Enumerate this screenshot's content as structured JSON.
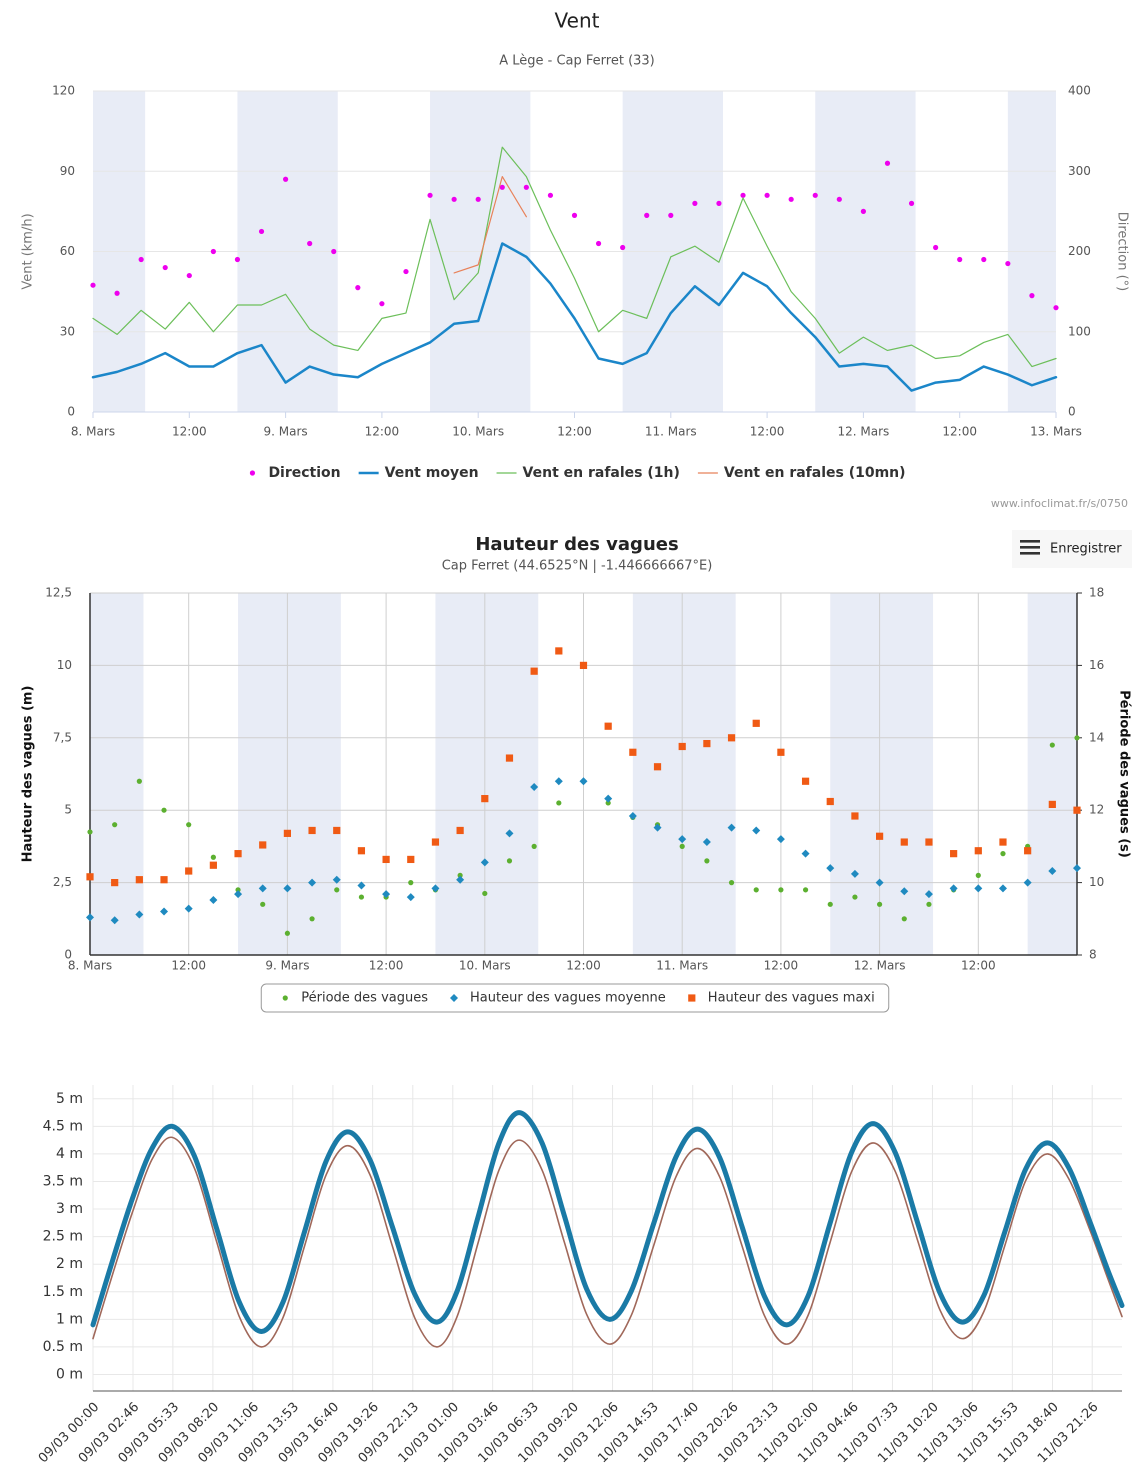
{
  "chart_data": [
    {
      "type": "line",
      "title": "Vent",
      "subtitle": "A Lège - Cap Ferret (33)",
      "ylabel": "Vent (km/h)",
      "y2label": "Direction (°)",
      "x": [
        0,
        3,
        6,
        9,
        12,
        15,
        18,
        21,
        24,
        27,
        30,
        33,
        36,
        39,
        42,
        45,
        48,
        51,
        54,
        57,
        60,
        63,
        66,
        69,
        72,
        75,
        78,
        81,
        84,
        87,
        90,
        93,
        96,
        99,
        102,
        105,
        108,
        111,
        114,
        117,
        120
      ],
      "xlim": [
        0,
        120
      ],
      "xticks": [
        {
          "value": 0,
          "label": "8. Mars"
        },
        {
          "value": 12,
          "label": "12:00"
        },
        {
          "value": 24,
          "label": "9. Mars"
        },
        {
          "value": 36,
          "label": "12:00"
        },
        {
          "value": 48,
          "label": "10. Mars"
        },
        {
          "value": 60,
          "label": "12:00"
        },
        {
          "value": 72,
          "label": "11. Mars"
        },
        {
          "value": 84,
          "label": "12:00"
        },
        {
          "value": 96,
          "label": "12. Mars"
        },
        {
          "value": 108,
          "label": "12:00"
        },
        {
          "value": 120,
          "label": "13. Mars"
        }
      ],
      "ylim": [
        0,
        120
      ],
      "yticks": [
        0,
        30,
        60,
        90,
        120
      ],
      "y2lim": [
        0,
        400
      ],
      "y2ticks": [
        0,
        100,
        200,
        300,
        400
      ],
      "grid": true,
      "legend": "bottom",
      "series": [
        {
          "name": "Direction",
          "color": "#ee00ee",
          "marker": "dot",
          "axis": "y2",
          "values": [
            158,
            148,
            190,
            180,
            170,
            200,
            190,
            225,
            290,
            210,
            200,
            155,
            135,
            175,
            270,
            265,
            265,
            280,
            280,
            270,
            245,
            210,
            205,
            245,
            245,
            260,
            260,
            270,
            270,
            265,
            270,
            265,
            250,
            310,
            260,
            205,
            190,
            190,
            185,
            145,
            130
          ]
        },
        {
          "name": "Vent moyen",
          "color": "#1b86c9",
          "line_width": 2.5,
          "values": [
            13,
            15,
            18,
            22,
            17,
            17,
            22,
            25,
            11,
            17,
            14,
            13,
            18,
            22,
            26,
            33,
            34,
            63,
            58,
            48,
            35,
            20,
            18,
            22,
            37,
            47,
            40,
            52,
            47,
            37,
            28,
            17,
            18,
            17,
            8,
            11,
            12,
            17,
            14,
            10,
            13
          ]
        },
        {
          "name": "Vent en rafales (1h)",
          "color": "#6cbf5a",
          "line_width": 1.2,
          "values": [
            35,
            29,
            38,
            31,
            41,
            30,
            40,
            40,
            44,
            31,
            25,
            23,
            35,
            37,
            72,
            42,
            52,
            99,
            88,
            68,
            50,
            30,
            38,
            35,
            58,
            62,
            56,
            80,
            62,
            45,
            35,
            22,
            28,
            23,
            25,
            20,
            21,
            26,
            29,
            17,
            20
          ]
        },
        {
          "name": "Vent en rafales (10mn)",
          "color": "#e8825a",
          "line_width": 1.2,
          "values": [
            null,
            null,
            null,
            null,
            null,
            null,
            null,
            null,
            null,
            null,
            null,
            null,
            null,
            null,
            null,
            52,
            55,
            88,
            73,
            null,
            null,
            null,
            null,
            null,
            null,
            null,
            null,
            null,
            null,
            null,
            null,
            null,
            null,
            null,
            null,
            null,
            null,
            null,
            null,
            null,
            null
          ]
        }
      ],
      "source": "www.infoclimat.fr/s/0750"
    },
    {
      "type": "scatter",
      "title": "Hauteur des vagues",
      "subtitle": "Cap Ferret (44.6525°N | -1.446666667°E)",
      "ylabel": "Hauteur des vagues (m)",
      "y2label": "Période des vagues (s)",
      "export_button": "Enregistrer",
      "x": [
        0,
        3,
        6,
        9,
        12,
        15,
        18,
        21,
        24,
        27,
        30,
        33,
        36,
        39,
        42,
        45,
        48,
        51,
        54,
        57,
        60,
        63,
        66,
        69,
        72,
        75,
        78,
        81,
        84,
        87,
        90,
        93,
        96,
        99,
        102,
        105,
        108,
        111,
        114,
        117,
        120
      ],
      "xlim": [
        0,
        120
      ],
      "xticks": [
        {
          "value": 0,
          "label": "8. Mars"
        },
        {
          "value": 12,
          "label": "12:00"
        },
        {
          "value": 24,
          "label": "9. Mars"
        },
        {
          "value": 36,
          "label": "12:00"
        },
        {
          "value": 48,
          "label": "10. Mars"
        },
        {
          "value": 60,
          "label": "12:00"
        },
        {
          "value": 72,
          "label": "11. Mars"
        },
        {
          "value": 84,
          "label": "12:00"
        },
        {
          "value": 96,
          "label": "12. Mars"
        },
        {
          "value": 108,
          "label": "12:00"
        }
      ],
      "ylim": [
        0,
        12.5
      ],
      "yticks": [
        0,
        {
          "value": 2.5,
          "label": "2,5"
        },
        5,
        {
          "value": 7.5,
          "label": "7,5"
        },
        10,
        {
          "value": 12.5,
          "label": "12,5"
        }
      ],
      "y2lim": [
        8,
        18
      ],
      "y2ticks": [
        8,
        10,
        12,
        14,
        16,
        18
      ],
      "grid": true,
      "legend": "bottom",
      "series": [
        {
          "name": "Période des vagues",
          "color": "#5cb030",
          "marker": "dot",
          "axis": "y2",
          "values": [
            11.4,
            11.6,
            12.8,
            12.0,
            11.6,
            10.7,
            9.8,
            9.4,
            8.6,
            9.0,
            9.8,
            9.6,
            9.6,
            10.0,
            9.8,
            10.2,
            9.7,
            10.6,
            11.0,
            12.2,
            12.8,
            12.2,
            11.8,
            11.6,
            11.0,
            10.6,
            10.0,
            9.8,
            9.8,
            9.8,
            9.4,
            9.6,
            9.4,
            9.0,
            9.4,
            9.8,
            10.2,
            10.8,
            11.0,
            13.8,
            14.0
          ]
        },
        {
          "name": "Hauteur des vagues moyenne",
          "color": "#1f8ac0",
          "marker": "diamond",
          "values": [
            1.3,
            1.2,
            1.4,
            1.5,
            1.6,
            1.9,
            2.1,
            2.3,
            2.3,
            2.5,
            2.6,
            2.4,
            2.1,
            2.0,
            2.3,
            2.6,
            3.2,
            4.2,
            5.8,
            6.0,
            6.0,
            5.4,
            4.8,
            4.4,
            4.0,
            3.9,
            4.4,
            4.3,
            4.0,
            3.5,
            3.0,
            2.8,
            2.5,
            2.2,
            2.1,
            2.3,
            2.3,
            2.3,
            2.5,
            2.9,
            3.0
          ]
        },
        {
          "name": "Hauteur des vagues maxi",
          "color": "#f05a14",
          "marker": "square",
          "values": [
            2.7,
            2.5,
            2.6,
            2.6,
            2.9,
            3.1,
            3.5,
            3.8,
            4.2,
            4.3,
            4.3,
            3.6,
            3.3,
            3.3,
            3.9,
            4.3,
            5.4,
            6.8,
            9.8,
            10.5,
            10.0,
            7.9,
            7.0,
            6.5,
            7.2,
            7.3,
            7.5,
            8.0,
            7.0,
            6.0,
            5.3,
            4.8,
            4.1,
            3.9,
            3.9,
            3.5,
            3.6,
            3.9,
            3.6,
            5.2,
            5.0
          ]
        }
      ]
    },
    {
      "type": "line",
      "smooth": true,
      "x": [
        0,
        1.4,
        2.75,
        4.1,
        5.5,
        7.05,
        8.6,
        10.15,
        11.7,
        13.2,
        14.7,
        16.2,
        17.7,
        19.25,
        20.8,
        22.35,
        23.9,
        25.3,
        26.75,
        28.2,
        29.6,
        31.2,
        32.75,
        34.3,
        35.9,
        37.4,
        38.95,
        40.5,
        42,
        43.55,
        45.1,
        46.65,
        48.2,
        49.7,
        51.2,
        52.7,
        54.2,
        55.75,
        57.3,
        58.85,
        60.4,
        61.9,
        63.35,
        64.8,
        66.3,
        67.8,
        69.3,
        70.5,
        71.5
      ],
      "xlim": [
        0,
        71.5
      ],
      "xticks": [
        {
          "value": 0,
          "label": "09/03 00:00"
        },
        {
          "value": 2.78,
          "label": "09/03 02:46"
        },
        {
          "value": 5.55,
          "label": "09/03 05:33"
        },
        {
          "value": 8.33,
          "label": "09/03 08:20"
        },
        {
          "value": 11.1,
          "label": "09/03 11:06"
        },
        {
          "value": 13.88,
          "label": "09/03 13:53"
        },
        {
          "value": 16.67,
          "label": "09/03 16:40"
        },
        {
          "value": 19.43,
          "label": "09/03 19:26"
        },
        {
          "value": 22.22,
          "label": "09/03 22:13"
        },
        {
          "value": 25,
          "label": "10/03 01:00"
        },
        {
          "value": 27.77,
          "label": "10/03 03:46"
        },
        {
          "value": 30.55,
          "label": "10/03 06:33"
        },
        {
          "value": 33.33,
          "label": "10/03 09:20"
        },
        {
          "value": 36.1,
          "label": "10/03 12:06"
        },
        {
          "value": 38.88,
          "label": "10/03 14:53"
        },
        {
          "value": 41.67,
          "label": "10/03 17:40"
        },
        {
          "value": 44.43,
          "label": "10/03 20:26"
        },
        {
          "value": 47.22,
          "label": "10/03 23:13"
        },
        {
          "value": 50,
          "label": "11/03 02:00"
        },
        {
          "value": 52.77,
          "label": "11/03 04:46"
        },
        {
          "value": 55.55,
          "label": "11/03 07:33"
        },
        {
          "value": 58.33,
          "label": "11/03 10:20"
        },
        {
          "value": 61.1,
          "label": "11/03 13:06"
        },
        {
          "value": 63.88,
          "label": "11/03 15:53"
        },
        {
          "value": 66.67,
          "label": "11/03 18:40"
        },
        {
          "value": 69.43,
          "label": "11/03 21:26"
        }
      ],
      "ylim": [
        -0.3,
        5.25
      ],
      "yticks": [
        {
          "value": 0,
          "label": "0 m"
        },
        {
          "value": 0.5,
          "label": "0.5 m"
        },
        {
          "value": 1,
          "label": "1 m"
        },
        {
          "value": 1.5,
          "label": "1.5 m"
        },
        {
          "value": 2,
          "label": "2 m"
        },
        {
          "value": 2.5,
          "label": "2.5 m"
        },
        {
          "value": 3,
          "label": "3 m"
        },
        {
          "value": 3.5,
          "label": "3.5 m"
        },
        {
          "value": 4,
          "label": "4 m"
        },
        {
          "value": 4.5,
          "label": "4.5 m"
        },
        {
          "value": 5,
          "label": "5 m"
        }
      ],
      "grid": true,
      "series": [
        {
          "color": "#a0685a",
          "line_width": 1.6,
          "values": [
            0.65,
            1.85,
            2.95,
            3.9,
            4.3,
            3.74,
            2.4,
            1.06,
            0.5,
            1.03,
            2.33,
            3.62,
            4.15,
            3.62,
            2.33,
            1.03,
            0.5,
            1.05,
            2.38,
            3.7,
            4.25,
            3.71,
            2.4,
            1.09,
            0.55,
            1.07,
            2.33,
            3.58,
            4.1,
            3.58,
            2.33,
            1.07,
            0.55,
            1.08,
            2.38,
            3.67,
            4.2,
            3.68,
            2.43,
            1.17,
            0.65,
            1.14,
            2.33,
            3.51,
            4.0,
            3.55,
            2.6,
            1.75,
            1.05
          ]
        },
        {
          "color": "#1a7aa6",
          "line_width": 5,
          "values": [
            0.9,
            2.1,
            3.2,
            4.1,
            4.5,
            3.96,
            2.64,
            1.32,
            0.78,
            1.31,
            2.59,
            3.87,
            4.4,
            3.89,
            2.68,
            1.46,
            0.95,
            1.51,
            2.85,
            4.19,
            4.75,
            4.2,
            2.88,
            1.55,
            1.0,
            1.51,
            2.73,
            3.94,
            4.45,
            3.93,
            2.68,
            1.42,
            0.9,
            1.43,
            2.73,
            4.02,
            4.55,
            4.02,
            2.75,
            1.48,
            0.95,
            1.43,
            2.58,
            3.72,
            4.2,
            3.75,
            2.75,
            1.9,
            1.25
          ]
        }
      ]
    }
  ]
}
